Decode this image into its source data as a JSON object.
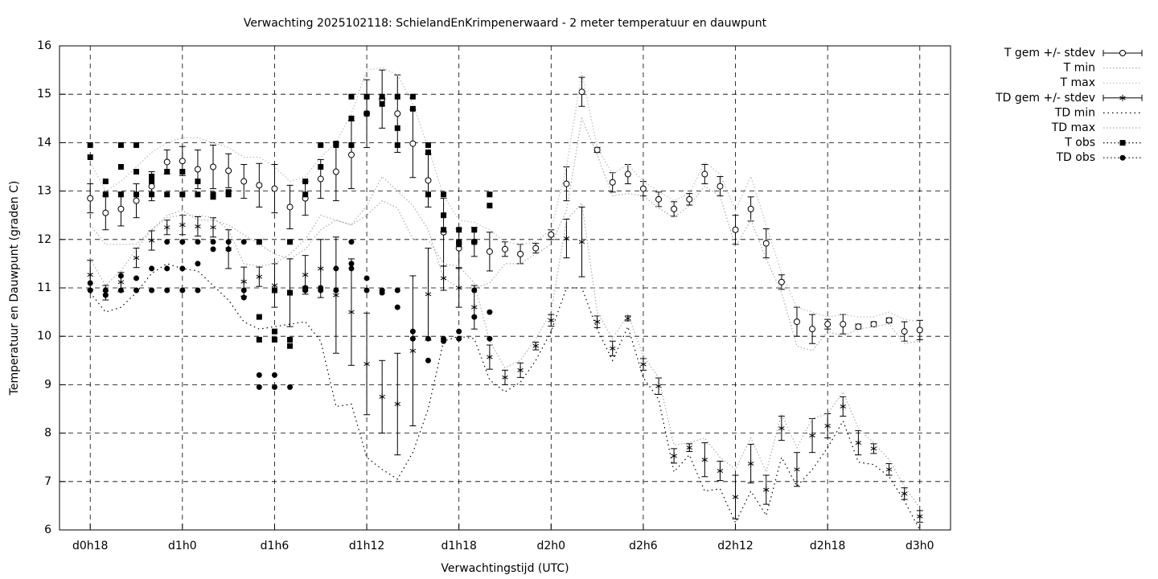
{
  "chart_data": {
    "type": "errorbar",
    "title": "Verwachting 2025102118: SchielandEnKrimpenerwaard - 2 meter temperatuur en dauwpunt",
    "x_label": "Verwachtingstijd (UTC)",
    "y_label": "Temperatuur en Dauwpunt (graden C)",
    "xlim": [
      16,
      74
    ],
    "xticks": [
      {
        "value": 18,
        "label": "d0h18"
      },
      {
        "value": 24,
        "label": "d1h0"
      },
      {
        "value": 30,
        "label": "d1h6"
      },
      {
        "value": 36,
        "label": "d1h12"
      },
      {
        "value": 42,
        "label": "d1h18"
      },
      {
        "value": 48,
        "label": "d2h0"
      },
      {
        "value": 54,
        "label": "d2h6"
      },
      {
        "value": 60,
        "label": "d2h12"
      },
      {
        "value": 66,
        "label": "d2h18"
      },
      {
        "value": 72,
        "label": "d3h0"
      }
    ],
    "ylim": [
      6,
      16
    ],
    "yticks": [
      6,
      7,
      8,
      9,
      10,
      11,
      12,
      13,
      14,
      15,
      16
    ],
    "grid": true,
    "legend": "outside-right",
    "x": [
      18,
      19,
      20,
      21,
      22,
      23,
      24,
      25,
      26,
      27,
      28,
      29,
      30,
      31,
      32,
      33,
      34,
      35,
      36,
      37,
      38,
      39,
      40,
      41,
      42,
      43,
      44,
      45,
      46,
      47,
      48,
      49,
      50,
      51,
      52,
      53,
      54,
      55,
      56,
      57,
      58,
      59,
      60,
      61,
      62,
      63,
      64,
      65,
      66,
      67,
      68,
      69,
      70,
      71,
      72
    ],
    "series": [
      {
        "name": "T gem +/- stdev",
        "style": "errorbar",
        "marker": "open-circle",
        "color": "#000000",
        "values": [
          12.85,
          12.55,
          12.63,
          12.8,
          13.1,
          13.6,
          13.62,
          13.45,
          13.5,
          13.42,
          13.2,
          13.12,
          13.05,
          12.67,
          12.85,
          13.25,
          13.4,
          13.75,
          14.6,
          14.9,
          14.6,
          13.98,
          13.22,
          12.15,
          11.82,
          11.95,
          11.75,
          11.8,
          11.7,
          11.82,
          12.1,
          13.15,
          15.05,
          13.85,
          13.18,
          13.35,
          13.05,
          12.83,
          12.63,
          12.83,
          13.35,
          13.1,
          12.2,
          12.63,
          11.92,
          11.12,
          10.3,
          10.15,
          10.25,
          10.25,
          10.2,
          10.25,
          10.33,
          10.1,
          10.13
        ],
        "errors": [
          0.3,
          0.35,
          0.35,
          0.35,
          0.3,
          0.25,
          0.3,
          0.4,
          0.45,
          0.35,
          0.35,
          0.45,
          0.5,
          0.45,
          0.35,
          0.4,
          0.6,
          0.7,
          0.7,
          0.6,
          0.8,
          0.7,
          0.55,
          0.7,
          0.4,
          0.3,
          0.4,
          0.15,
          0.2,
          0.1,
          0.1,
          0.35,
          0.3,
          0.05,
          0.2,
          0.2,
          0.15,
          0.15,
          0.15,
          0.12,
          0.2,
          0.2,
          0.3,
          0.25,
          0.3,
          0.15,
          0.3,
          0.3,
          0.1,
          0.2,
          0.05,
          0.05,
          0.05,
          0.2,
          0.2
        ]
      },
      {
        "name": "T min",
        "style": "line",
        "color": "#aaaaaa",
        "values": [
          12.3,
          11.9,
          11.9,
          11.9,
          12.2,
          12.5,
          12.6,
          12.4,
          12.4,
          12.3,
          12.1,
          11.9,
          11.7,
          11.6,
          11.8,
          12.2,
          12.4,
          12.3,
          12.7,
          13.3,
          13.0,
          12.7,
          12.2,
          11.2,
          11.0,
          11.0,
          11.1,
          11.5,
          11.5,
          11.7,
          11.9,
          12.6,
          14.5,
          13.75,
          12.9,
          12.95,
          12.9,
          12.65,
          12.45,
          12.7,
          13.1,
          12.9,
          11.85,
          12.4,
          11.6,
          10.9,
          9.8,
          9.7,
          10.1,
          10.0,
          10.15,
          10.2,
          10.25,
          9.85,
          9.9
        ]
      },
      {
        "name": "T max",
        "style": "line",
        "color": "#bbbbbb",
        "values": [
          13.6,
          13.0,
          13.2,
          13.5,
          13.8,
          14.0,
          14.1,
          14.1,
          14.0,
          13.9,
          13.7,
          13.7,
          13.5,
          13.2,
          13.3,
          13.7,
          14.0,
          14.6,
          15.5,
          15.55,
          15.4,
          14.8,
          13.9,
          12.9,
          12.4,
          12.35,
          12.2,
          11.95,
          11.9,
          11.95,
          12.2,
          13.5,
          15.45,
          13.9,
          13.35,
          13.55,
          13.2,
          13.0,
          12.8,
          12.95,
          13.6,
          13.35,
          12.6,
          13.3,
          12.3,
          11.3,
          10.6,
          10.5,
          10.4,
          10.45,
          10.4,
          10.4,
          10.5,
          10.35,
          10.3
        ]
      },
      {
        "name": "TD gem +/- stdev",
        "style": "errorbar",
        "marker": "star",
        "color": "#000000",
        "values": [
          11.27,
          10.9,
          11.12,
          11.62,
          11.98,
          12.25,
          12.3,
          12.27,
          12.25,
          11.8,
          11.13,
          11.23,
          11.05,
          10.9,
          11.27,
          11.4,
          10.85,
          10.5,
          9.43,
          8.75,
          8.6,
          9.7,
          10.87,
          11.2,
          11.0,
          10.6,
          9.57,
          9.15,
          9.3,
          9.8,
          10.33,
          12.02,
          11.95,
          10.3,
          9.75,
          10.37,
          9.42,
          8.97,
          7.53,
          7.7,
          7.45,
          7.22,
          6.68,
          7.37,
          6.83,
          8.1,
          7.25,
          7.95,
          8.15,
          8.55,
          7.8,
          7.68,
          7.25,
          6.75,
          6.28
        ],
        "errors": [
          0.3,
          0.15,
          0.2,
          0.2,
          0.2,
          0.15,
          0.2,
          0.2,
          0.2,
          0.4,
          0.3,
          0.2,
          0.45,
          0.7,
          0.4,
          0.6,
          1.2,
          1.1,
          1.05,
          0.75,
          1.05,
          1.55,
          0.95,
          0.25,
          0.4,
          0.45,
          0.25,
          0.15,
          0.15,
          0.08,
          0.12,
          0.4,
          0.72,
          0.12,
          0.15,
          0.05,
          0.12,
          0.17,
          0.15,
          0.08,
          0.35,
          0.2,
          0.45,
          0.4,
          0.3,
          0.25,
          0.35,
          0.35,
          0.25,
          0.2,
          0.25,
          0.1,
          0.12,
          0.12,
          0.12
        ]
      },
      {
        "name": "TD min",
        "style": "line",
        "color": "#000000",
        "values": [
          10.9,
          10.5,
          10.6,
          10.9,
          11.3,
          11.5,
          11.4,
          11.35,
          11.05,
          10.75,
          10.3,
          10.15,
          10.2,
          10.25,
          10.3,
          9.9,
          8.55,
          8.6,
          7.5,
          7.25,
          7.05,
          7.6,
          8.5,
          9.9,
          10.0,
          9.95,
          9.1,
          8.85,
          9.05,
          9.5,
          10.1,
          11.0,
          11.0,
          10.15,
          9.5,
          10.2,
          9.15,
          8.7,
          7.2,
          7.55,
          6.8,
          6.85,
          6.15,
          6.8,
          6.3,
          7.5,
          6.9,
          7.25,
          7.7,
          8.25,
          7.4,
          7.35,
          7.1,
          6.6,
          6.0
        ]
      },
      {
        "name": "TD max",
        "style": "line",
        "color": "#aaaaaa",
        "values": [
          11.6,
          11.05,
          11.35,
          11.8,
          12.2,
          12.45,
          12.5,
          12.5,
          12.45,
          12.2,
          11.5,
          11.45,
          11.5,
          11.7,
          12.0,
          12.5,
          12.4,
          12.3,
          12.5,
          12.8,
          12.65,
          12.0,
          12.0,
          11.5,
          11.45,
          11.1,
          9.9,
          9.35,
          9.5,
          9.95,
          10.5,
          12.4,
          12.75,
          10.5,
          9.95,
          10.45,
          9.6,
          9.15,
          7.75,
          7.8,
          7.9,
          7.5,
          7.25,
          7.9,
          7.2,
          8.4,
          7.7,
          8.3,
          8.4,
          8.85,
          8.1,
          7.8,
          7.45,
          6.9,
          6.45
        ]
      },
      {
        "name": "T obs",
        "style": "points",
        "marker": "square",
        "color": "#000000",
        "x": [
          18,
          18,
          19,
          19,
          20,
          20,
          20,
          21,
          21,
          21,
          22,
          22,
          22,
          23,
          23,
          24,
          24,
          25,
          25,
          26,
          26,
          27,
          27,
          29,
          29,
          29,
          30,
          30,
          30,
          31,
          31,
          31,
          31,
          32,
          32,
          32,
          33,
          33,
          34,
          34,
          35,
          35,
          35,
          36,
          36,
          37,
          37,
          38,
          38,
          38,
          39,
          39,
          40,
          40,
          40,
          41,
          41,
          41,
          42,
          42,
          42,
          43,
          43,
          44,
          44
        ],
        "values": [
          13.95,
          13.7,
          13.2,
          12.93,
          13.95,
          13.5,
          12.93,
          13.95,
          13.4,
          12.93,
          13.3,
          13.2,
          12.93,
          13.4,
          12.93,
          13.4,
          12.93,
          13.2,
          12.93,
          12.93,
          12.88,
          12.98,
          12.93,
          11.95,
          10.4,
          9.93,
          10.95,
          10.1,
          9.93,
          11.95,
          10.9,
          9.93,
          9.8,
          13.2,
          12.93,
          10.98,
          13.95,
          13.5,
          13.98,
          13.95,
          14.95,
          14.5,
          13.95,
          14.95,
          14.6,
          14.95,
          14.8,
          14.95,
          14.3,
          13.95,
          14.95,
          14.7,
          13.95,
          13.8,
          12.93,
          12.93,
          12.5,
          12.2,
          12.2,
          11.95,
          11.9,
          12.2,
          11.95,
          12.93,
          12.7
        ]
      },
      {
        "name": "TD obs",
        "style": "points",
        "marker": "dot",
        "color": "#000000",
        "x": [
          18,
          18,
          19,
          19,
          20,
          20,
          21,
          21,
          22,
          22,
          23,
          23,
          23,
          24,
          24,
          24,
          25,
          25,
          25,
          26,
          26,
          27,
          27,
          28,
          28,
          28,
          29,
          29,
          30,
          30,
          31,
          32,
          32,
          33,
          33,
          34,
          34,
          35,
          35,
          35,
          36,
          36,
          37,
          37,
          38,
          38,
          39,
          39,
          40,
          40,
          41,
          41,
          42,
          42,
          43,
          43,
          44,
          44
        ],
        "values": [
          11.1,
          10.95,
          10.95,
          10.85,
          11.25,
          10.95,
          11.2,
          10.95,
          11.4,
          10.95,
          11.95,
          11.4,
          10.95,
          11.95,
          11.4,
          10.95,
          11.95,
          11.5,
          10.95,
          11.95,
          11.8,
          11.95,
          11.8,
          11.95,
          10.95,
          10.8,
          9.2,
          8.95,
          9.2,
          8.95,
          8.95,
          11.0,
          10.95,
          11.0,
          10.95,
          11.4,
          10.95,
          11.95,
          11.5,
          11.4,
          11.2,
          10.95,
          10.95,
          10.9,
          10.95,
          10.6,
          10.1,
          9.95,
          9.95,
          9.5,
          9.95,
          9.9,
          10.1,
          9.95,
          10.95,
          10.4,
          10.5,
          9.95
        ]
      }
    ]
  }
}
